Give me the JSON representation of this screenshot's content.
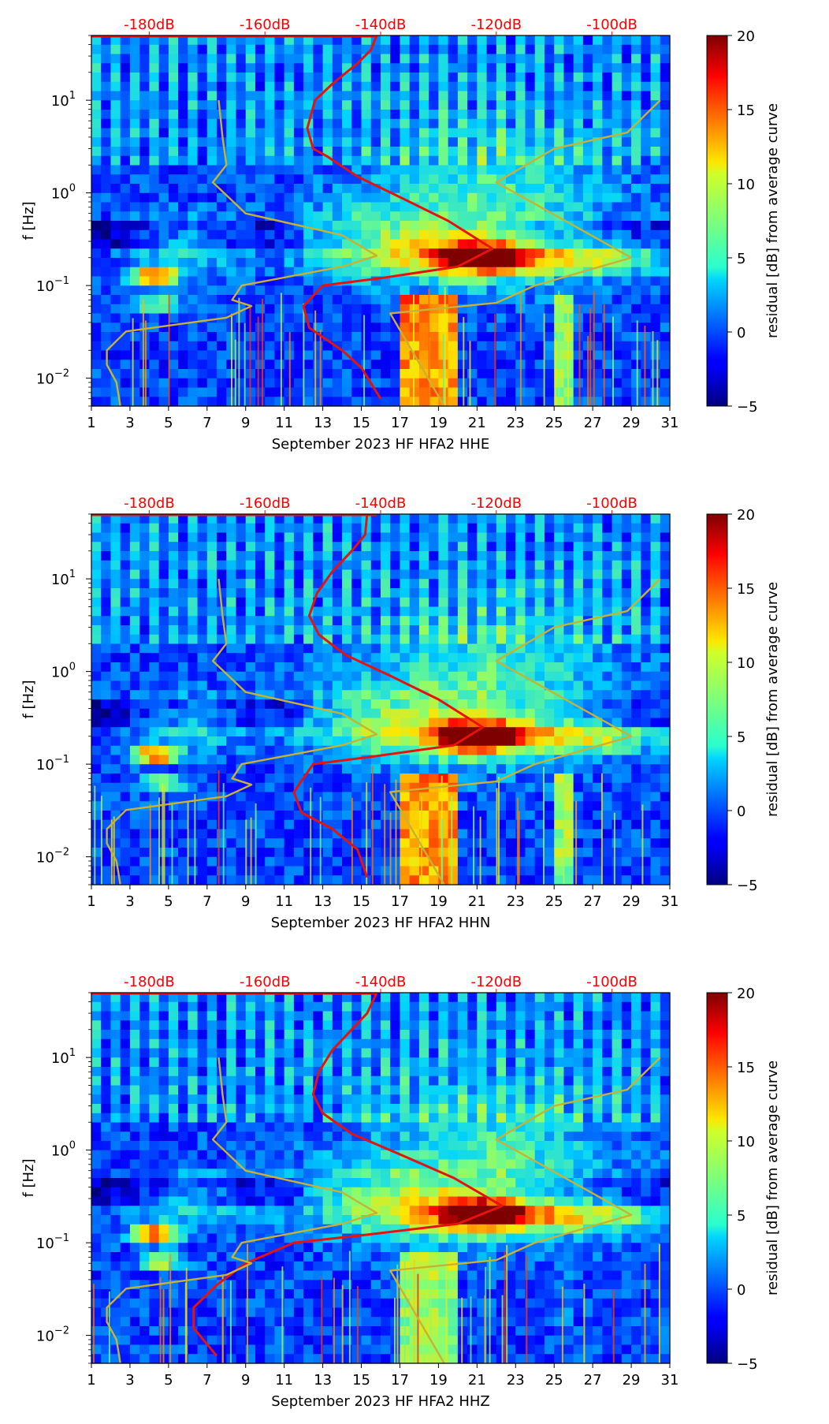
{
  "colors": {
    "top_scale": "#ff0000",
    "psd_curve": "#e8120c",
    "noise_model": "#c8b234",
    "axis": "#000000"
  },
  "colorbar": {
    "label": "residual [dB] from average curve",
    "ticks": [
      "20",
      "15",
      "10",
      "5",
      "0",
      "−5"
    ],
    "range": [
      -5,
      20
    ]
  },
  "top_scale": {
    "labels": [
      "-180dB",
      "-160dB",
      "-140dB",
      "-120dB",
      "-100dB"
    ],
    "positions_day": [
      4.0,
      10.0,
      16.0,
      22.0,
      28.0
    ]
  },
  "axes": {
    "ylabel": "f [Hz]",
    "x_ticks": [
      "1",
      "3",
      "5",
      "7",
      "9",
      "11",
      "13",
      "15",
      "17",
      "19",
      "21",
      "23",
      "25",
      "27",
      "29",
      "31"
    ],
    "y_ticks": [
      "10",
      "10",
      "10",
      "10"
    ],
    "y_tick_exps": [
      "1",
      "0",
      "−1",
      "−2"
    ]
  },
  "chart_data": [
    {
      "type": "heatmap",
      "title": "",
      "xlabel": "September 2023 HF HFA2  HHE",
      "ylabel": "f [Hz]",
      "xlim": [
        1,
        31
      ],
      "ylim_hz": [
        0.005,
        50
      ],
      "yscale": "log",
      "colorbar_range_db": [
        -5,
        20
      ],
      "series": [
        {
          "name": "average PSD curve (top dB scale)",
          "points": [
            [
              15.8,
              50
            ],
            [
              15.5,
              35
            ],
            [
              14.8,
              25
            ],
            [
              13.5,
              15
            ],
            [
              12.6,
              10
            ],
            [
              12.2,
              5
            ],
            [
              12.5,
              3
            ],
            [
              13.2,
              2.5
            ],
            [
              14.8,
              1.5
            ],
            [
              17.0,
              0.9
            ],
            [
              19.5,
              0.5
            ],
            [
              21.8,
              0.25
            ],
            [
              20.0,
              0.16
            ],
            [
              16.0,
              0.12
            ],
            [
              13.0,
              0.1
            ],
            [
              12.0,
              0.06
            ],
            [
              12.3,
              0.035
            ],
            [
              14.0,
              0.02
            ],
            [
              15.0,
              0.013
            ],
            [
              16.0,
              0.006
            ]
          ]
        },
        {
          "name": "noise model curves",
          "points": [
            [
              2.5,
              0.005
            ],
            [
              2.3,
              0.009
            ],
            [
              1.8,
              0.014
            ],
            [
              1.8,
              0.02
            ],
            [
              2.8,
              0.032
            ],
            [
              8.0,
              0.045
            ],
            [
              9.3,
              0.06
            ],
            [
              8.3,
              0.07
            ],
            [
              8.8,
              0.1
            ],
            [
              14.0,
              0.16
            ],
            [
              15.8,
              0.21
            ],
            [
              14.0,
              0.35
            ],
            [
              9.0,
              0.6
            ],
            [
              7.3,
              1.3
            ],
            [
              8.0,
              2.0
            ],
            [
              7.8,
              4.0
            ],
            [
              7.6,
              10
            ]
          ]
        },
        {
          "name": "noise model curves (right)",
          "points": [
            [
              19.3,
              0.005
            ],
            [
              16.5,
              0.05
            ],
            [
              22.0,
              0.065
            ],
            [
              24.0,
              0.1
            ],
            [
              29.0,
              0.2
            ],
            [
              22.0,
              1.3
            ],
            [
              25.0,
              3.0
            ],
            [
              28.8,
              4.5
            ],
            [
              30.5,
              10
            ]
          ]
        }
      ]
    },
    {
      "type": "heatmap",
      "title": "",
      "xlabel": "September 2023 HF HFA2  HHN",
      "ylabel": "f [Hz]",
      "xlim": [
        1,
        31
      ],
      "ylim_hz": [
        0.005,
        50
      ],
      "yscale": "log",
      "colorbar_range_db": [
        -5,
        20
      ],
      "series": [
        {
          "name": "average PSD curve (top dB scale)",
          "points": [
            [
              15.3,
              50
            ],
            [
              15.2,
              30
            ],
            [
              14.5,
              20
            ],
            [
              13.5,
              12
            ],
            [
              12.7,
              7
            ],
            [
              12.3,
              4
            ],
            [
              12.8,
              2.5
            ],
            [
              14.2,
              1.5
            ],
            [
              16.5,
              0.9
            ],
            [
              19.0,
              0.5
            ],
            [
              21.3,
              0.25
            ],
            [
              19.8,
              0.16
            ],
            [
              15.5,
              0.12
            ],
            [
              12.5,
              0.1
            ],
            [
              11.5,
              0.05
            ],
            [
              11.9,
              0.03
            ],
            [
              13.5,
              0.02
            ],
            [
              14.8,
              0.012
            ],
            [
              15.3,
              0.006
            ]
          ]
        },
        {
          "name": "noise model curves",
          "points": [
            [
              2.5,
              0.005
            ],
            [
              2.3,
              0.009
            ],
            [
              1.8,
              0.014
            ],
            [
              1.8,
              0.02
            ],
            [
              2.8,
              0.032
            ],
            [
              8.0,
              0.045
            ],
            [
              9.3,
              0.06
            ],
            [
              8.3,
              0.07
            ],
            [
              8.8,
              0.1
            ],
            [
              14.0,
              0.16
            ],
            [
              15.8,
              0.21
            ],
            [
              14.0,
              0.35
            ],
            [
              9.0,
              0.6
            ],
            [
              7.3,
              1.3
            ],
            [
              8.0,
              2.0
            ],
            [
              7.8,
              4.0
            ],
            [
              7.6,
              10
            ]
          ]
        },
        {
          "name": "noise model curves (right)",
          "points": [
            [
              19.3,
              0.005
            ],
            [
              16.5,
              0.05
            ],
            [
              22.0,
              0.065
            ],
            [
              24.0,
              0.1
            ],
            [
              29.0,
              0.2
            ],
            [
              22.0,
              1.3
            ],
            [
              25.0,
              3.0
            ],
            [
              28.8,
              4.5
            ],
            [
              30.5,
              10
            ]
          ]
        }
      ]
    },
    {
      "type": "heatmap",
      "title": "",
      "xlabel": "September 2023 HF HFA2  HHZ",
      "ylabel": "f [Hz]",
      "xlim": [
        1,
        31
      ],
      "ylim_hz": [
        0.005,
        50
      ],
      "yscale": "log",
      "colorbar_range_db": [
        -5,
        20
      ],
      "series": [
        {
          "name": "average PSD curve (top dB scale)",
          "points": [
            [
              15.8,
              50
            ],
            [
              15.3,
              30
            ],
            [
              14.5,
              20
            ],
            [
              13.5,
              12
            ],
            [
              12.8,
              7
            ],
            [
              12.5,
              4
            ],
            [
              13.0,
              2.5
            ],
            [
              14.5,
              1.5
            ],
            [
              17.0,
              0.9
            ],
            [
              19.8,
              0.5
            ],
            [
              22.3,
              0.25
            ],
            [
              20.0,
              0.16
            ],
            [
              15.0,
              0.12
            ],
            [
              11.5,
              0.1
            ],
            [
              9.0,
              0.06
            ],
            [
              7.5,
              0.035
            ],
            [
              6.3,
              0.02
            ],
            [
              6.3,
              0.012
            ],
            [
              7.5,
              0.006
            ]
          ]
        },
        {
          "name": "noise model curves",
          "points": [
            [
              2.5,
              0.005
            ],
            [
              2.3,
              0.009
            ],
            [
              1.8,
              0.014
            ],
            [
              1.8,
              0.02
            ],
            [
              2.8,
              0.032
            ],
            [
              8.0,
              0.045
            ],
            [
              9.3,
              0.06
            ],
            [
              8.3,
              0.07
            ],
            [
              8.8,
              0.1
            ],
            [
              14.0,
              0.16
            ],
            [
              15.8,
              0.21
            ],
            [
              14.0,
              0.35
            ],
            [
              9.0,
              0.6
            ],
            [
              7.3,
              1.3
            ],
            [
              8.0,
              2.0
            ],
            [
              7.8,
              4.0
            ],
            [
              7.6,
              10
            ]
          ]
        },
        {
          "name": "noise model curves (right)",
          "points": [
            [
              19.3,
              0.005
            ],
            [
              16.5,
              0.05
            ],
            [
              22.0,
              0.065
            ],
            [
              24.0,
              0.1
            ],
            [
              29.0,
              0.2
            ],
            [
              22.0,
              1.3
            ],
            [
              25.0,
              3.0
            ],
            [
              28.8,
              4.5
            ],
            [
              30.5,
              10
            ]
          ]
        }
      ]
    }
  ]
}
